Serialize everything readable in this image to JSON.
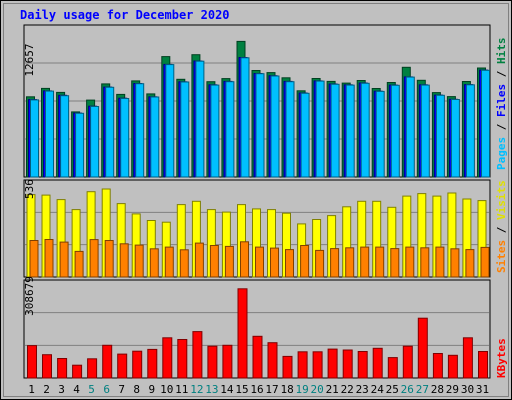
{
  "chart_data": [
    {
      "type": "bar",
      "title": "Daily usage for December 2020",
      "days": [
        "1",
        "2",
        "3",
        "4",
        "5",
        "6",
        "7",
        "8",
        "9",
        "10",
        "11",
        "12",
        "13",
        "14",
        "15",
        "16",
        "17",
        "18",
        "19",
        "20",
        "21",
        "22",
        "23",
        "24",
        "25",
        "26",
        "27",
        "28",
        "29",
        "30",
        "31"
      ],
      "weekend_days": [
        5,
        6,
        12,
        13,
        19,
        20,
        26,
        27
      ],
      "ymax": 12657,
      "ylabel": "12657",
      "legend": [
        "Pages",
        "Files",
        "Hits"
      ],
      "series": [
        {
          "name": "Hits",
          "color": "#008040",
          "values": [
            7050,
            7790,
            7440,
            5720,
            6760,
            8180,
            7260,
            8450,
            7300,
            10580,
            8590,
            10750,
            8380,
            8650,
            11920,
            9360,
            9180,
            8720,
            7580,
            8660,
            8400,
            8250,
            8480,
            7780,
            8310,
            9640,
            8500,
            7420,
            7070,
            8390,
            9580
          ]
        },
        {
          "name": "Files",
          "color": "#0000ff",
          "values": [
            6800,
            7570,
            7180,
            5620,
            6220,
            7900,
            6930,
            8220,
            7050,
            9900,
            8370,
            10200,
            8100,
            8400,
            10500,
            9100,
            8900,
            8400,
            7380,
            8450,
            8170,
            8100,
            8260,
            7540,
            8080,
            8800,
            8100,
            7200,
            6830,
            8120,
            9400
          ]
        },
        {
          "name": "Pages",
          "color": "#00c0ff",
          "values": [
            6780,
            7550,
            7150,
            5600,
            6200,
            7880,
            6900,
            8200,
            7030,
            9880,
            8350,
            10180,
            8080,
            8380,
            10480,
            9080,
            8880,
            8380,
            7360,
            8430,
            8150,
            8080,
            8240,
            7520,
            8060,
            8780,
            8080,
            7180,
            6810,
            8100,
            9380
          ]
        }
      ]
    },
    {
      "type": "bar",
      "ymax": 536,
      "ylabel": "536",
      "legend": [
        "Sites",
        "Visits"
      ],
      "series": [
        {
          "name": "Visits",
          "color": "#ffff00",
          "values": [
            496,
            493,
            466,
            406,
            514,
            530,
            442,
            380,
            340,
            330,
            436,
            456,
            406,
            391,
            436,
            410,
            406,
            384,
            320,
            346,
            370,
            423,
            456,
            456,
            420,
            487,
            502,
            487,
            506,
            470,
            460
          ]
        },
        {
          "name": "Sites",
          "color": "#ff8000",
          "values": [
            220,
            226,
            210,
            154,
            225,
            220,
            200,
            192,
            170,
            180,
            164,
            204,
            190,
            184,
            212,
            180,
            174,
            165,
            190,
            160,
            171,
            176,
            180,
            180,
            171,
            180,
            176,
            180,
            170,
            165,
            178
          ]
        }
      ]
    },
    {
      "type": "bar",
      "ymax": 308679,
      "ylabel": "308679",
      "legend": [
        "KBytes"
      ],
      "series": [
        {
          "name": "KBytes",
          "color": "#ff0000",
          "values": [
            111000,
            80000,
            67000,
            44000,
            66000,
            112000,
            82000,
            92000,
            98000,
            138000,
            132000,
            159000,
            109000,
            112000,
            306000,
            143000,
            121000,
            74000,
            90000,
            90000,
            99000,
            96000,
            91000,
            102000,
            70000,
            109000,
            205000,
            84000,
            78000,
            138000,
            91000
          ]
        }
      ]
    }
  ]
}
